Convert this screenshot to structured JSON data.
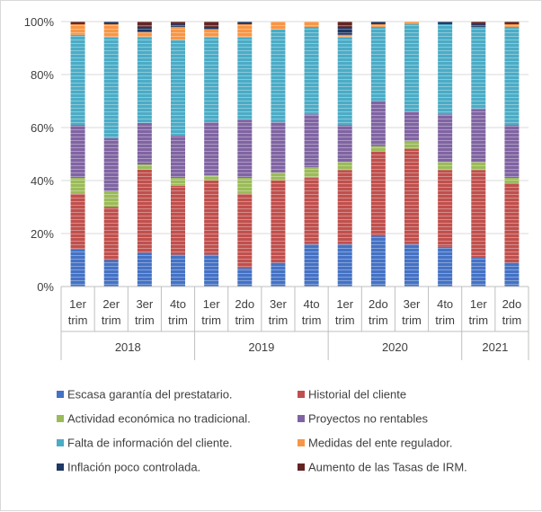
{
  "chart_data": {
    "type": "bar",
    "stacked": true,
    "normalized_percent": true,
    "title": "",
    "ylim": [
      0,
      100
    ],
    "yticks": [
      "0%",
      "20%",
      "40%",
      "60%",
      "80%",
      "100%"
    ],
    "categories": [
      {
        "quarter": "1er trim",
        "year": "2018"
      },
      {
        "quarter": "2er trim",
        "year": "2018"
      },
      {
        "quarter": "3er trim",
        "year": "2018"
      },
      {
        "quarter": "4to trim",
        "year": "2018"
      },
      {
        "quarter": "1er trim",
        "year": "2019"
      },
      {
        "quarter": "2do trim",
        "year": "2019"
      },
      {
        "quarter": "3er trim",
        "year": "2019"
      },
      {
        "quarter": "4to trim",
        "year": "2019"
      },
      {
        "quarter": "1er trim",
        "year": "2020"
      },
      {
        "quarter": "2do trim",
        "year": "2020"
      },
      {
        "quarter": "3er trim",
        "year": "2020"
      },
      {
        "quarter": "4to trim",
        "year": "2020"
      },
      {
        "quarter": "1er trim",
        "year": "2021"
      },
      {
        "quarter": "2do trim",
        "year": "2021"
      }
    ],
    "year_groups": [
      {
        "label": "2018",
        "count": 4
      },
      {
        "label": "2019",
        "count": 4
      },
      {
        "label": "2020",
        "count": 4
      },
      {
        "label": "2021",
        "count": 2
      }
    ],
    "series": [
      {
        "name": "Escasa garantía del prestatario.",
        "color": "#4472c4",
        "values": [
          14,
          10,
          13,
          12,
          12,
          7,
          9,
          16,
          16,
          19,
          16,
          15,
          11,
          9
        ]
      },
      {
        "name": "Historial del cliente",
        "color": "#c0504d",
        "values": [
          21,
          20,
          32,
          26,
          28,
          28,
          31,
          25,
          28,
          32,
          36,
          29,
          33,
          30
        ]
      },
      {
        "name": "Actividad económica no tradicional.",
        "color": "#9bbb59",
        "values": [
          6,
          6,
          2,
          3,
          2,
          6,
          3,
          4,
          3,
          2,
          3,
          3,
          3,
          2
        ]
      },
      {
        "name": "Proyectos no rentables",
        "color": "#8064a2",
        "values": [
          20,
          20,
          16,
          16,
          20,
          22,
          19,
          20,
          14,
          17,
          11,
          18,
          20,
          20
        ]
      },
      {
        "name": "Falta de información del cliente.",
        "color": "#4bacc6",
        "values": [
          34,
          38,
          33,
          36,
          32,
          31,
          35,
          33,
          33,
          28,
          33,
          34,
          31,
          37
        ]
      },
      {
        "name": "Medidas del ente regulador.",
        "color": "#f79646",
        "values": [
          4,
          5,
          2,
          5,
          3,
          5,
          3,
          2,
          1,
          1,
          1,
          0,
          0,
          1
        ]
      },
      {
        "name": "Inflación poco controlada.",
        "color": "#1f3864",
        "values": [
          0,
          1,
          2,
          1,
          1,
          1,
          0,
          0,
          3,
          1,
          0,
          1,
          1,
          0
        ]
      },
      {
        "name": "Aumento de las Tasas de IRM.",
        "color": "#632523",
        "values": [
          1,
          0,
          2,
          1,
          2,
          0,
          0,
          0,
          2,
          0,
          0,
          0,
          1,
          1
        ]
      }
    ],
    "legend_position": "bottom",
    "grid": true
  }
}
